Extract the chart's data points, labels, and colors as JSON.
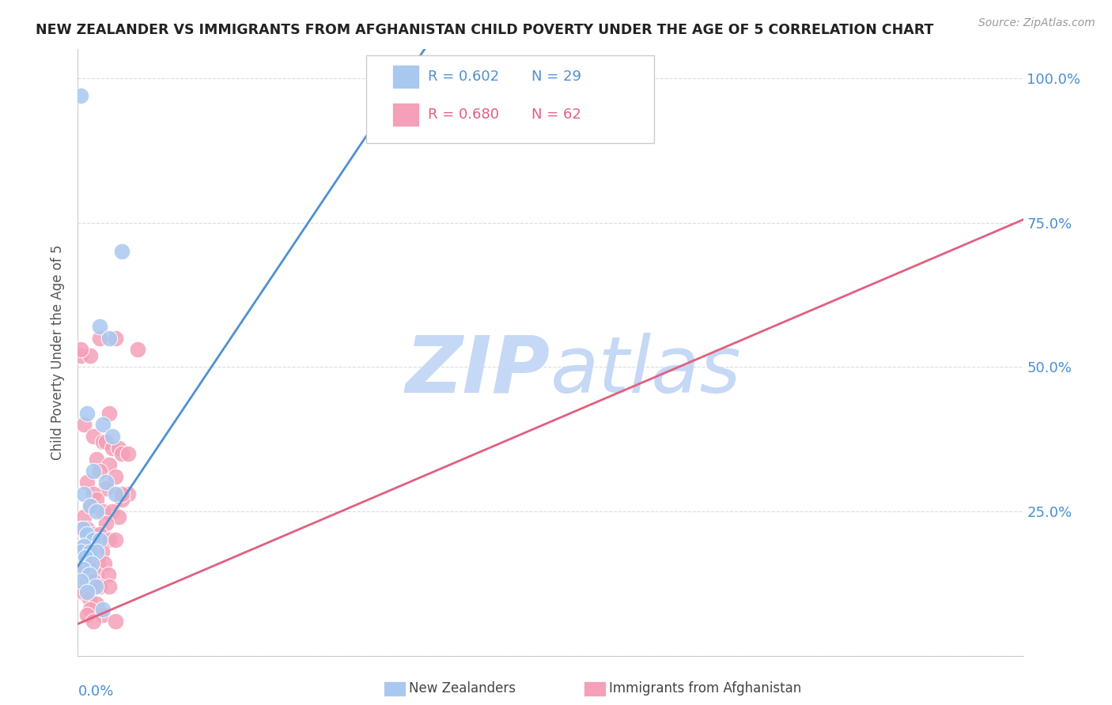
{
  "title": "NEW ZEALANDER VS IMMIGRANTS FROM AFGHANISTAN CHILD POVERTY UNDER THE AGE OF 5 CORRELATION CHART",
  "source": "Source: ZipAtlas.com",
  "ylabel": "Child Poverty Under the Age of 5",
  "yticks": [
    0.0,
    0.25,
    0.5,
    0.75,
    1.0
  ],
  "ytick_labels": [
    "",
    "25.0%",
    "50.0%",
    "75.0%",
    "100.0%"
  ],
  "xmin": 0.0,
  "xmax": 0.15,
  "ymin": 0.0,
  "ymax": 1.05,
  "blue_label": "New Zealanders",
  "pink_label": "Immigrants from Afghanistan",
  "blue_R": "R = 0.602",
  "blue_N": "N = 29",
  "pink_R": "R = 0.680",
  "pink_N": "N = 62",
  "blue_color": "#A8C8F0",
  "pink_color": "#F4A0B8",
  "blue_line_color": "#5090D0",
  "pink_line_color": "#E06080",
  "blue_scatter": [
    [
      0.0005,
      0.97
    ],
    [
      0.007,
      0.7
    ],
    [
      0.0035,
      0.57
    ],
    [
      0.005,
      0.55
    ],
    [
      0.0015,
      0.42
    ],
    [
      0.004,
      0.4
    ],
    [
      0.0055,
      0.38
    ],
    [
      0.0025,
      0.32
    ],
    [
      0.0045,
      0.3
    ],
    [
      0.001,
      0.28
    ],
    [
      0.002,
      0.26
    ],
    [
      0.003,
      0.25
    ],
    [
      0.006,
      0.28
    ],
    [
      0.0008,
      0.22
    ],
    [
      0.0015,
      0.21
    ],
    [
      0.0025,
      0.2
    ],
    [
      0.0035,
      0.2
    ],
    [
      0.001,
      0.19
    ],
    [
      0.0005,
      0.18
    ],
    [
      0.002,
      0.18
    ],
    [
      0.003,
      0.18
    ],
    [
      0.0012,
      0.17
    ],
    [
      0.0022,
      0.16
    ],
    [
      0.0008,
      0.15
    ],
    [
      0.0018,
      0.14
    ],
    [
      0.0005,
      0.13
    ],
    [
      0.0028,
      0.12
    ],
    [
      0.0015,
      0.11
    ],
    [
      0.004,
      0.08
    ]
  ],
  "pink_scatter": [
    [
      0.0005,
      0.52
    ],
    [
      0.002,
      0.52
    ],
    [
      0.0035,
      0.55
    ],
    [
      0.006,
      0.55
    ],
    [
      0.005,
      0.42
    ],
    [
      0.001,
      0.4
    ],
    [
      0.0025,
      0.38
    ],
    [
      0.004,
      0.37
    ],
    [
      0.0045,
      0.37
    ],
    [
      0.0055,
      0.36
    ],
    [
      0.0065,
      0.36
    ],
    [
      0.007,
      0.35
    ],
    [
      0.003,
      0.34
    ],
    [
      0.005,
      0.33
    ],
    [
      0.0035,
      0.32
    ],
    [
      0.006,
      0.31
    ],
    [
      0.0015,
      0.3
    ],
    [
      0.0045,
      0.29
    ],
    [
      0.0025,
      0.28
    ],
    [
      0.008,
      0.28
    ],
    [
      0.003,
      0.27
    ],
    [
      0.007,
      0.27
    ],
    [
      0.002,
      0.26
    ],
    [
      0.004,
      0.25
    ],
    [
      0.0055,
      0.25
    ],
    [
      0.001,
      0.24
    ],
    [
      0.0065,
      0.24
    ],
    [
      0.0045,
      0.23
    ],
    [
      0.0005,
      0.22
    ],
    [
      0.0015,
      0.22
    ],
    [
      0.0025,
      0.21
    ],
    [
      0.0035,
      0.21
    ],
    [
      0.005,
      0.2
    ],
    [
      0.006,
      0.2
    ],
    [
      0.0008,
      0.19
    ],
    [
      0.0018,
      0.19
    ],
    [
      0.0028,
      0.18
    ],
    [
      0.0038,
      0.18
    ],
    [
      0.0012,
      0.17
    ],
    [
      0.0022,
      0.17
    ],
    [
      0.0032,
      0.16
    ],
    [
      0.0042,
      0.16
    ],
    [
      0.001,
      0.15
    ],
    [
      0.002,
      0.15
    ],
    [
      0.003,
      0.14
    ],
    [
      0.0048,
      0.14
    ],
    [
      0.0015,
      0.13
    ],
    [
      0.0025,
      0.13
    ],
    [
      0.0035,
      0.12
    ],
    [
      0.005,
      0.12
    ],
    [
      0.0008,
      0.11
    ],
    [
      0.0018,
      0.1
    ],
    [
      0.003,
      0.09
    ],
    [
      0.002,
      0.08
    ],
    [
      0.0015,
      0.07
    ],
    [
      0.004,
      0.07
    ],
    [
      0.0025,
      0.06
    ],
    [
      0.006,
      0.06
    ],
    [
      0.0095,
      0.53
    ],
    [
      0.008,
      0.35
    ],
    [
      0.007,
      0.28
    ],
    [
      0.0005,
      0.53
    ]
  ],
  "blue_line_x": [
    0.0,
    0.055
  ],
  "blue_line_y": [
    0.155,
    1.05
  ],
  "pink_line_x": [
    0.0,
    0.15
  ],
  "pink_line_y": [
    0.055,
    0.755
  ],
  "watermark_zip": "ZIP",
  "watermark_atlas": "atlas",
  "watermark_color": "#C5D8F5",
  "background_color": "#FFFFFF",
  "grid_color": "#DDDDDD",
  "title_color": "#222222",
  "source_color": "#999999",
  "axis_label_color": "#555555",
  "tick_label_color": "#4A8FD0",
  "legend_edge_color": "#CCCCCC"
}
